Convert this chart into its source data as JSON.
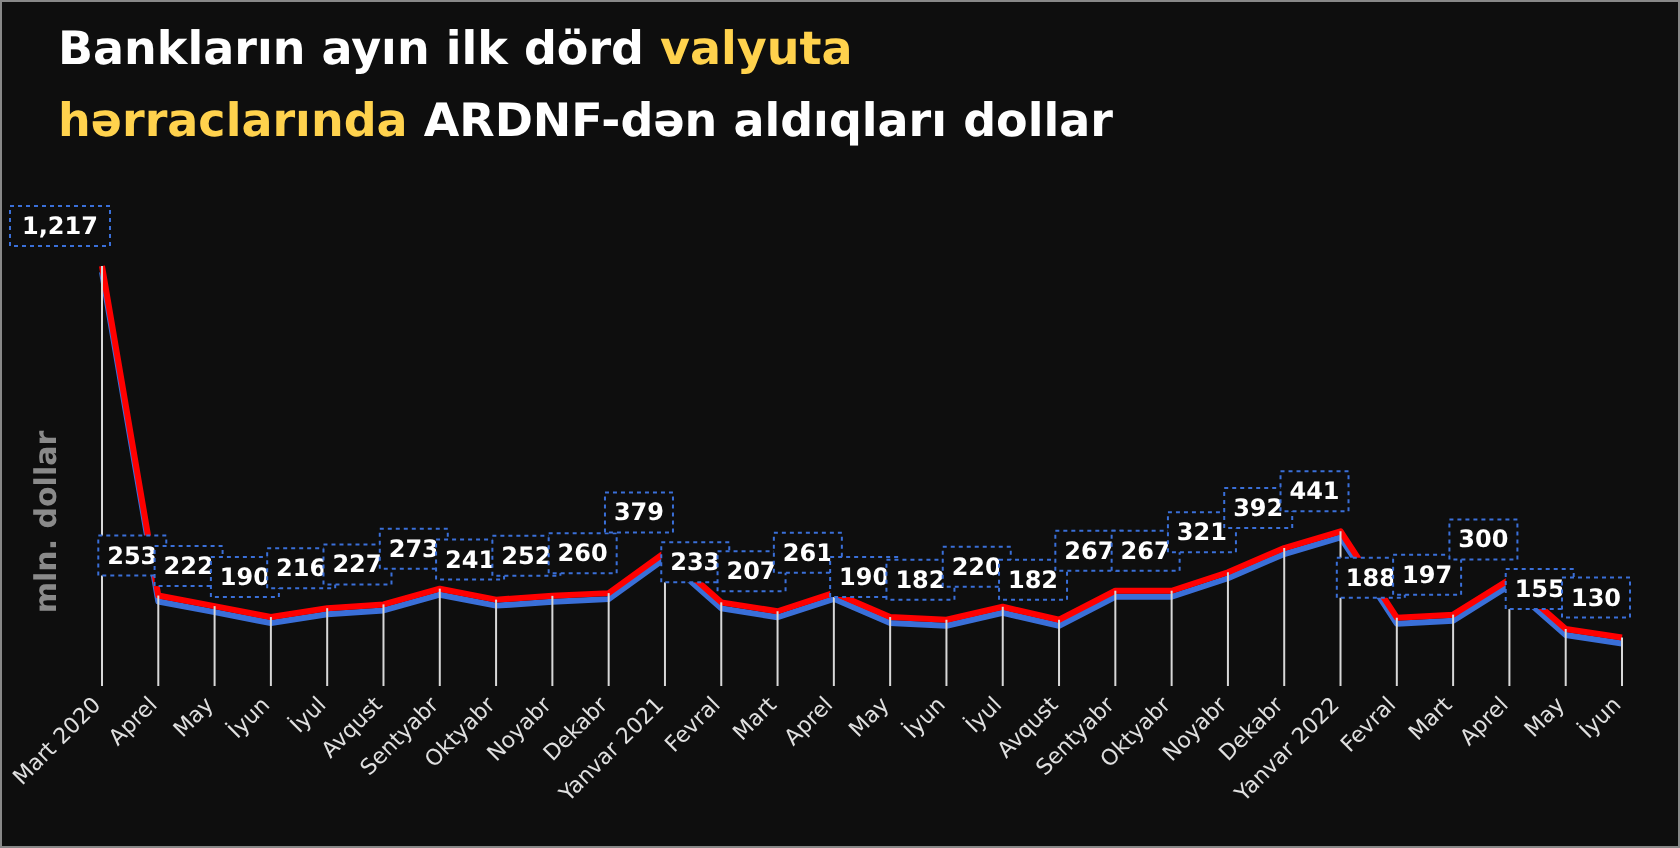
{
  "chart_data": {
    "type": "line",
    "title": "Bankların ayın ilk dörd valyuta hərraclarında ARDNF-dən aldıqları dollar",
    "ylabel": "mln. dollar",
    "categories": [
      "Mart  2020",
      "Aprel",
      "May",
      "İyun",
      "İyul",
      "Avqust",
      "Sentyabr",
      "Oktyabr",
      "Noyabr",
      "Dekabr",
      "Yanvar 2021",
      "Fevral",
      "Mart",
      "Aprel",
      "May",
      "İyun",
      "İyul",
      "Avqust",
      "Sentyabr",
      "Oktyabr",
      "Noyabr",
      "Dekabr",
      "Yanvar 2022",
      "Fevral",
      "Mart",
      "Aprel",
      "May",
      "İyun"
    ],
    "series": [
      {
        "color": "#ff0000",
        "values": [
          1217,
          253,
          222,
          190,
          216,
          227,
          273,
          241,
          252,
          260,
          379,
          233,
          207,
          261,
          190,
          182,
          220,
          182,
          267,
          267,
          321,
          392,
          441,
          188,
          197,
          300,
          155,
          130
        ],
        "value_labels": [
          "1,217",
          "253",
          "222",
          "190",
          "216",
          "227",
          "273",
          "241",
          "252",
          "260",
          "379",
          "233",
          "207",
          "261",
          "190",
          "182",
          "220",
          "182",
          "267",
          "267",
          "321",
          "392",
          "441",
          "188",
          "197",
          "300",
          "155",
          "130"
        ]
      }
    ],
    "grid": "x"
  }
}
